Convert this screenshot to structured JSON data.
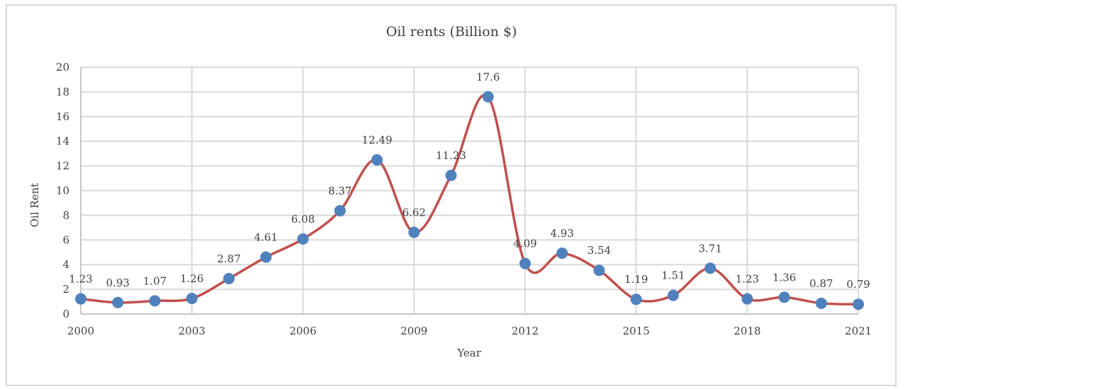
{
  "chart_data": {
    "type": "line",
    "title": "Oil rents (Billion $)",
    "xlabel": "Year",
    "ylabel": "Oil Rent",
    "ylim": [
      0,
      20
    ],
    "yticks": [
      0,
      2,
      4,
      6,
      8,
      10,
      12,
      14,
      16,
      18,
      20
    ],
    "xticks": [
      2000,
      2003,
      2006,
      2009,
      2012,
      2015,
      2018,
      2021
    ],
    "xlim": [
      2000,
      2021
    ],
    "grid": true,
    "legend": "none",
    "line_color": "#c0504d",
    "marker_color": "#4f81bd",
    "x": [
      2000,
      2001,
      2002,
      2003,
      2004,
      2005,
      2006,
      2007,
      2008,
      2009,
      2010,
      2011,
      2012,
      2013,
      2014,
      2015,
      2016,
      2017,
      2018,
      2019,
      2020,
      2021
    ],
    "values": [
      1.23,
      0.93,
      1.07,
      1.26,
      2.87,
      4.61,
      6.08,
      8.37,
      12.49,
      6.62,
      11.23,
      17.6,
      4.09,
      4.93,
      3.54,
      1.19,
      1.51,
      3.71,
      1.23,
      1.36,
      0.87,
      0.79
    ],
    "labels": [
      "1.23",
      "0.93",
      "1.07",
      "1.26",
      "2.87",
      "4.61",
      "6.08",
      "8.37",
      "12.49",
      "6.62",
      "11.23",
      "17.6",
      "4.09",
      "4.93",
      "3.54",
      "1.19",
      "1.51",
      "3.71",
      "1.23",
      "1.36",
      "0.87",
      "0.79"
    ]
  }
}
